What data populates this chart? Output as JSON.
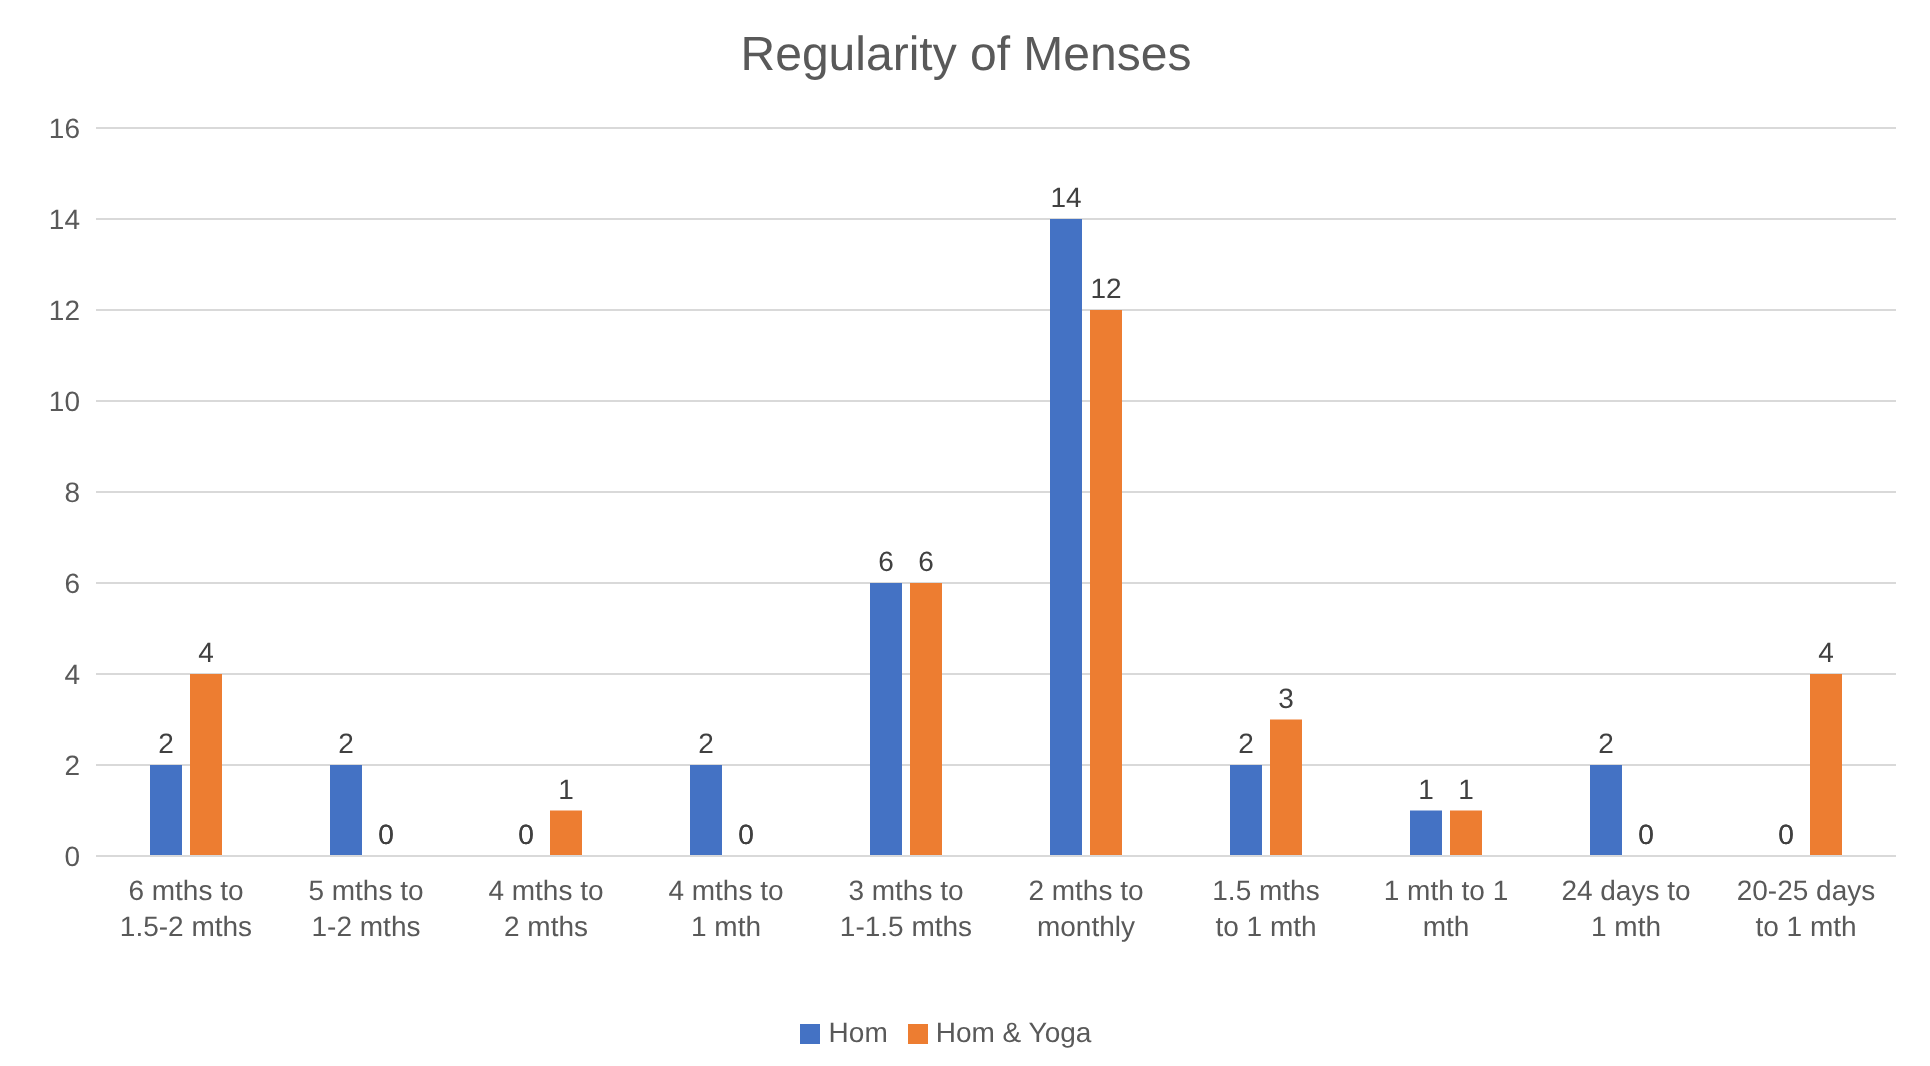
{
  "chart_data": {
    "type": "bar",
    "title": "Regularity of Menses",
    "categories": [
      "6 mths to 1.5-2 mths",
      "5 mths to 1-2 mths",
      "4 mths to 2 mths",
      "4 mths to 1 mth",
      "3 mths to 1-1.5 mths",
      "2 mths to monthly",
      "1.5 mths to 1 mth",
      "1 mth to 1 mth",
      "24 days to 1 mth",
      "20-25 days to 1 mth"
    ],
    "series": [
      {
        "name": "Hom",
        "color": "#4472c4",
        "values": [
          2,
          2,
          0,
          2,
          6,
          14,
          2,
          1,
          2,
          0
        ]
      },
      {
        "name": "Hom & Yoga",
        "color": "#ed7d31",
        "values": [
          4,
          0,
          1,
          0,
          6,
          12,
          3,
          1,
          0,
          4
        ]
      }
    ],
    "ylim": [
      0,
      16
    ],
    "yticks": [
      0,
      2,
      4,
      6,
      8,
      10,
      12,
      14,
      16
    ],
    "grid": "y",
    "legend": "bottom",
    "data_labels": true
  }
}
